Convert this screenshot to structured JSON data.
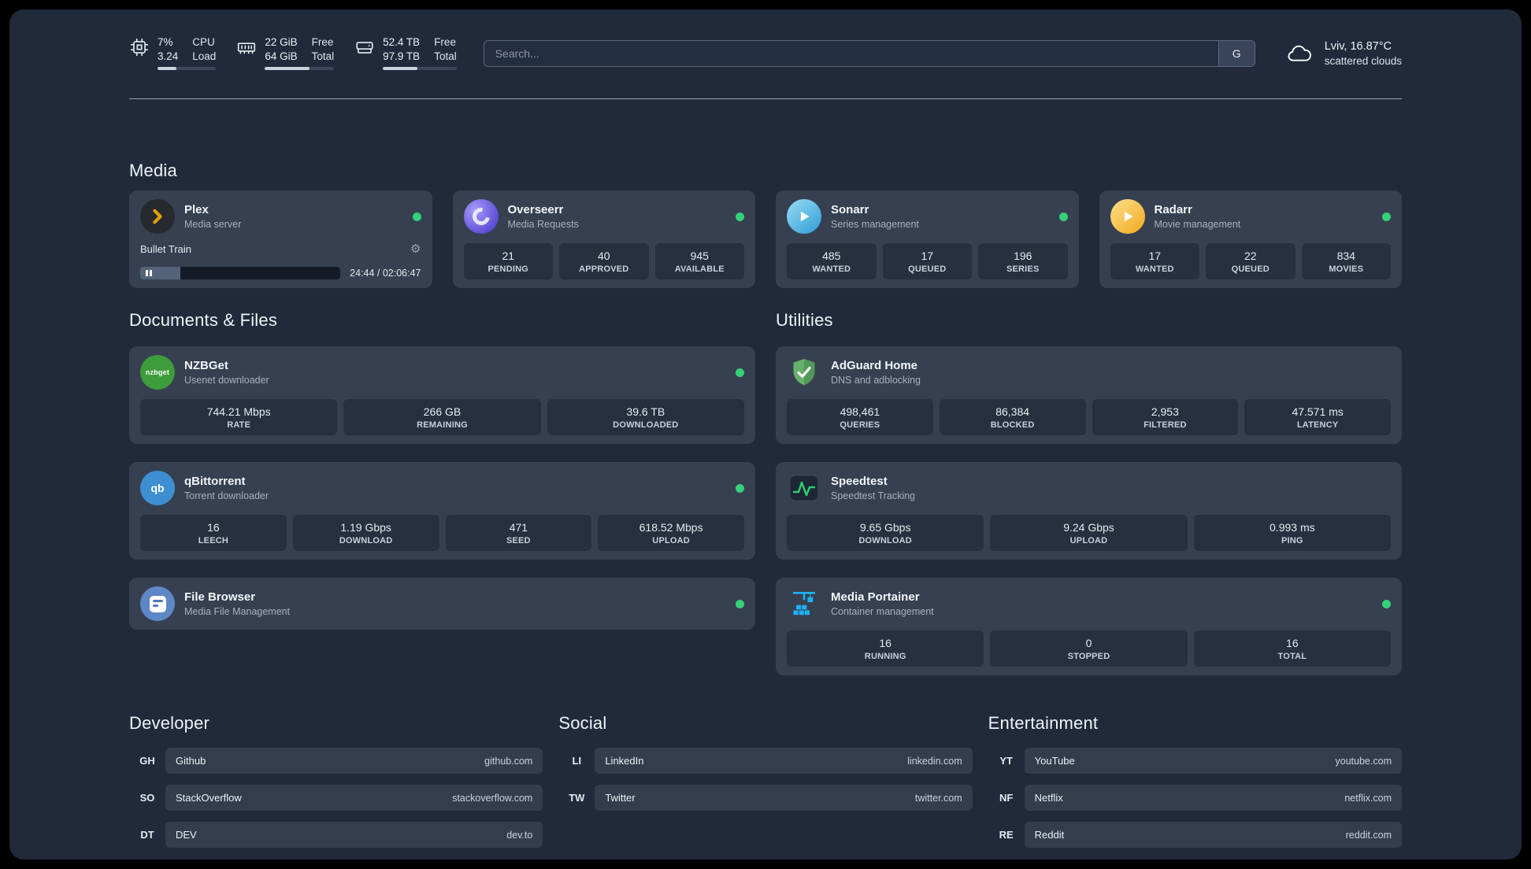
{
  "header": {
    "cpu": {
      "value_top": "7%",
      "label_top": "CPU",
      "value_bottom": "3.24",
      "label_bottom": "Load",
      "bar_width": "32%"
    },
    "ram": {
      "value_top": "22 GiB",
      "label_top": "Free",
      "value_bottom": "64 GiB",
      "label_bottom": "Total",
      "bar_width": "65%"
    },
    "disk": {
      "value_top": "52.4 TB",
      "label_top": "Free",
      "value_bottom": "97.9 TB",
      "label_bottom": "Total",
      "bar_width": "47%"
    },
    "search": {
      "placeholder": "Search...",
      "button_label": "G"
    },
    "weather": {
      "location": "Lviv, 16.87°C",
      "condition": "scattered clouds"
    }
  },
  "sections": {
    "media": {
      "title": "Media",
      "plex": {
        "name": "Plex",
        "desc": "Media server",
        "now_playing": "Bullet Train",
        "time": "24:44 / 02:06:47",
        "progress_width": "20%"
      },
      "overseerr": {
        "name": "Overseerr",
        "desc": "Media Requests",
        "stats": [
          {
            "value": "21",
            "label": "PENDING"
          },
          {
            "value": "40",
            "label": "APPROVED"
          },
          {
            "value": "945",
            "label": "AVAILABLE"
          }
        ]
      },
      "sonarr": {
        "name": "Sonarr",
        "desc": "Series management",
        "stats": [
          {
            "value": "485",
            "label": "WANTED"
          },
          {
            "value": "17",
            "label": "QUEUED"
          },
          {
            "value": "196",
            "label": "SERIES"
          }
        ]
      },
      "radarr": {
        "name": "Radarr",
        "desc": "Movie management",
        "stats": [
          {
            "value": "17",
            "label": "WANTED"
          },
          {
            "value": "22",
            "label": "QUEUED"
          },
          {
            "value": "834",
            "label": "MOVIES"
          }
        ]
      }
    },
    "documents": {
      "title": "Documents & Files",
      "nzbget": {
        "name": "NZBGet",
        "desc": "Usenet downloader",
        "icon_text": "nzbget",
        "stats": [
          {
            "value": "744.21 Mbps",
            "label": "RATE"
          },
          {
            "value": "266 GB",
            "label": "REMAINING"
          },
          {
            "value": "39.6 TB",
            "label": "DOWNLOADED"
          }
        ]
      },
      "qbittorrent": {
        "name": "qBittorrent",
        "desc": "Torrent downloader",
        "icon_text": "qb",
        "stats": [
          {
            "value": "16",
            "label": "LEECH"
          },
          {
            "value": "1.19 Gbps",
            "label": "DOWNLOAD"
          },
          {
            "value": "471",
            "label": "SEED"
          },
          {
            "value": "618.52 Mbps",
            "label": "UPLOAD"
          }
        ]
      },
      "filebrowser": {
        "name": "File Browser",
        "desc": "Media File Management"
      }
    },
    "utilities": {
      "title": "Utilities",
      "adguard": {
        "name": "AdGuard Home",
        "desc": "DNS and adblocking",
        "stats": [
          {
            "value": "498,461",
            "label": "QUERIES"
          },
          {
            "value": "86,384",
            "label": "BLOCKED"
          },
          {
            "value": "2,953",
            "label": "FILTERED"
          },
          {
            "value": "47.571 ms",
            "label": "LATENCY"
          }
        ]
      },
      "speedtest": {
        "name": "Speedtest",
        "desc": "Speedtest Tracking",
        "stats": [
          {
            "value": "9.65 Gbps",
            "label": "DOWNLOAD"
          },
          {
            "value": "9.24 Gbps",
            "label": "UPLOAD"
          },
          {
            "value": "0.993 ms",
            "label": "PING"
          }
        ]
      },
      "portainer": {
        "name": "Media Portainer",
        "desc": "Container management",
        "stats": [
          {
            "value": "16",
            "label": "RUNNING"
          },
          {
            "value": "0",
            "label": "STOPPED"
          },
          {
            "value": "16",
            "label": "TOTAL"
          }
        ]
      }
    }
  },
  "bookmarks": {
    "developer": {
      "title": "Developer",
      "items": [
        {
          "abbr": "GH",
          "name": "Github",
          "url": "github.com"
        },
        {
          "abbr": "SO",
          "name": "StackOverflow",
          "url": "stackoverflow.com"
        },
        {
          "abbr": "DT",
          "name": "DEV",
          "url": "dev.to"
        }
      ]
    },
    "social": {
      "title": "Social",
      "items": [
        {
          "abbr": "LI",
          "name": "LinkedIn",
          "url": "linkedin.com"
        },
        {
          "abbr": "TW",
          "name": "Twitter",
          "url": "twitter.com"
        }
      ]
    },
    "entertainment": {
      "title": "Entertainment",
      "items": [
        {
          "abbr": "YT",
          "name": "YouTube",
          "url": "youtube.com"
        },
        {
          "abbr": "NF",
          "name": "Netflix",
          "url": "netflix.com"
        },
        {
          "abbr": "RE",
          "name": "Reddit",
          "url": "reddit.com"
        }
      ]
    }
  },
  "colors": {
    "status_online": "#34d179",
    "plex_gold": "#e5a00d",
    "adguard_green": "#67b06a",
    "speedtest_green": "#2ecc71",
    "portainer_blue": "#1db0f4"
  }
}
